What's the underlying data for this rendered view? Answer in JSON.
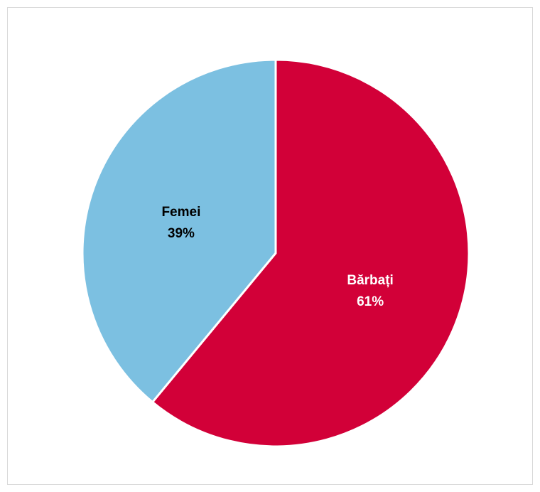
{
  "chart_data": {
    "type": "pie",
    "categories": [
      "Bărbați",
      "Femei"
    ],
    "values": [
      61,
      39
    ],
    "value_labels": [
      "61%",
      "39%"
    ],
    "colors": [
      "#d20038",
      "#7cc0e1"
    ],
    "label_colors": [
      "#ffffff",
      "#000000"
    ],
    "legend": "none",
    "title": ""
  }
}
